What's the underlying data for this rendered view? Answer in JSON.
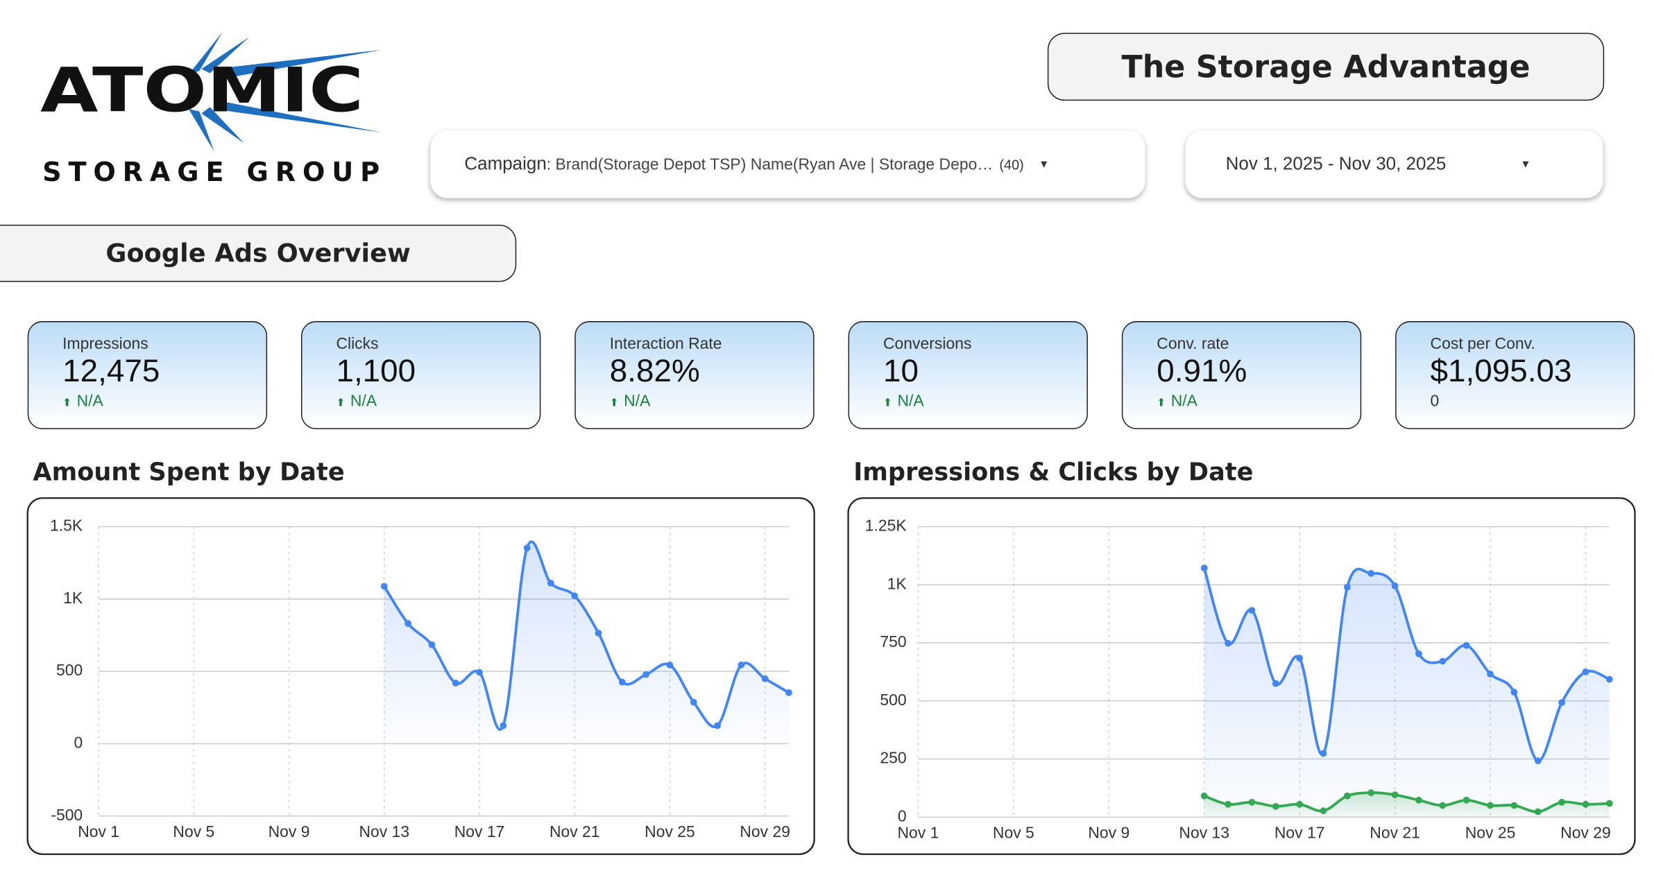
{
  "header": {
    "logo_top": "ATOMIC",
    "logo_bottom": "STORAGE GROUP",
    "title": "The Storage Advantage"
  },
  "filters": {
    "campaign_label": "Campaign",
    "campaign_value": ": Brand(Storage Depot TSP) Name(Ryan Ave | Storage Depo…",
    "campaign_count": "(40)",
    "date_range": "Nov 1, 2025 - Nov 30, 2025"
  },
  "section_title": "Google Ads Overview",
  "kpis": [
    {
      "label": "Impressions",
      "value": "12,475",
      "delta": "N/A"
    },
    {
      "label": "Clicks",
      "value": "1,100",
      "delta": "N/A"
    },
    {
      "label": "Interaction Rate",
      "value": "8.82%",
      "delta": "N/A"
    },
    {
      "label": "Conversions",
      "value": "10",
      "delta": "N/A"
    },
    {
      "label": "Conv. rate",
      "value": "0.91%",
      "delta": "N/A"
    },
    {
      "label": "Cost per Conv.",
      "value": "$1,095.03",
      "delta": "0"
    }
  ],
  "chart_data": [
    {
      "type": "line",
      "title": "Amount Spent by Date",
      "categories": [
        "Nov 1",
        null,
        null,
        null,
        "Nov 5",
        null,
        null,
        null,
        "Nov 9",
        null,
        null,
        null,
        "Nov 13",
        null,
        null,
        null,
        "Nov 17",
        null,
        null,
        null,
        "Nov 21",
        null,
        null,
        null,
        "Nov 25",
        null,
        null,
        null,
        "Nov 29",
        null
      ],
      "series": [
        {
          "color": "#4285f4",
          "values": [
            null,
            null,
            null,
            null,
            null,
            null,
            null,
            null,
            null,
            null,
            null,
            null,
            1088,
            831,
            684,
            419,
            493,
            125,
            1353,
            1110,
            1022,
            765,
            426,
            478,
            544,
            287,
            125,
            544,
            449,
            353
          ]
        }
      ],
      "ylim": [
        -500,
        1500
      ],
      "yticks": [
        -500,
        0,
        500,
        {
          "value": 1000,
          "label": "1K"
        },
        {
          "value": 1500,
          "label": "1.5K"
        }
      ],
      "grid": true
    },
    {
      "type": "line",
      "title": "Impressions & Clicks by Date",
      "categories": [
        "Nov 1",
        null,
        null,
        null,
        "Nov 5",
        null,
        null,
        null,
        "Nov 9",
        null,
        null,
        null,
        "Nov 13",
        null,
        null,
        null,
        "Nov 17",
        null,
        null,
        null,
        "Nov 21",
        null,
        null,
        null,
        "Nov 25",
        null,
        null,
        null,
        "Nov 29",
        null
      ],
      "series": [
        {
          "color": "#4285f4",
          "values": [
            null,
            null,
            null,
            null,
            null,
            null,
            null,
            null,
            null,
            null,
            null,
            null,
            1072,
            748,
            890,
            575,
            684,
            274,
            990,
            1049,
            995,
            703,
            671,
            739,
            616,
            538,
            242,
            493,
            625,
            593
          ]
        },
        {
          "color": "#34a853",
          "values": [
            null,
            null,
            null,
            null,
            null,
            null,
            null,
            null,
            null,
            null,
            null,
            null,
            91,
            55,
            64,
            46,
            55,
            27,
            91,
            105,
            96,
            73,
            50,
            73,
            50,
            50,
            23,
            64,
            55,
            59
          ]
        }
      ],
      "ylim": [
        0,
        1250
      ],
      "yticks": [
        0,
        250,
        500,
        750,
        {
          "value": 1000,
          "label": "1K"
        },
        {
          "value": 1250,
          "label": "1.25K"
        }
      ],
      "grid": true
    }
  ]
}
